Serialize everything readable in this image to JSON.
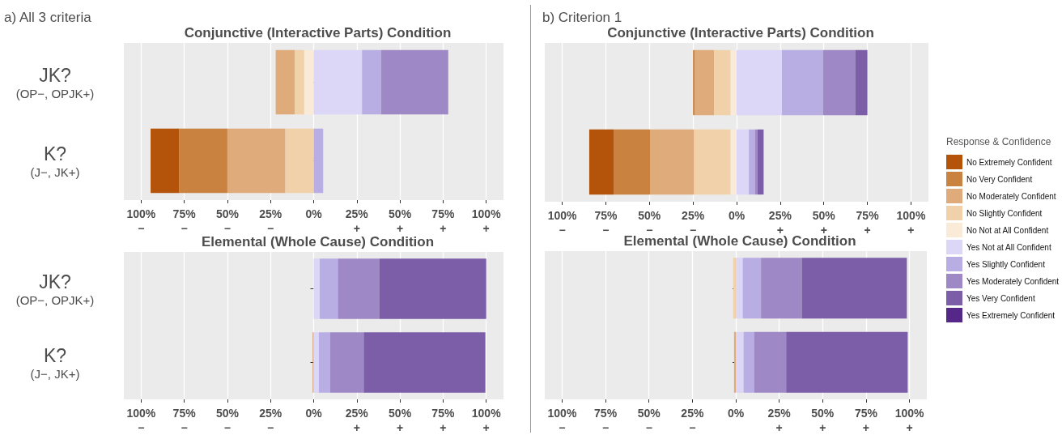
{
  "chart_data": [
    {
      "type": "bar",
      "orientation": "horizontal",
      "stacked": true,
      "subtitle": "a) All 3 criteria",
      "title": "Conjunctive (Interactive Parts) Condition",
      "categories": [
        "JK?\n(OP−, OPJK+)",
        "K?\n(J−, JK+)"
      ],
      "legend": "right",
      "legend_title": "Response & Confidence",
      "xlim": [
        -110,
        110
      ],
      "xticks": [
        {
          "value": -100,
          "label": "100%\n−"
        },
        {
          "value": -75,
          "label": "75%\n−"
        },
        {
          "value": -50,
          "label": "50%\n−"
        },
        {
          "value": -25,
          "label": "25%\n−"
        },
        {
          "value": 0,
          "label": "0%"
        },
        {
          "value": 25,
          "label": "25%\n+"
        },
        {
          "value": 50,
          "label": "50%\n+"
        },
        {
          "value": 75,
          "label": "75%\n+"
        },
        {
          "value": 100,
          "label": "100%\n+"
        }
      ],
      "grid": "x",
      "series": [
        {
          "name": "No Not at All Confident",
          "color": "#faebd8",
          "values": [
            -5.5,
            null
          ]
        },
        {
          "name": "No Slightly Confident",
          "color": "#f0d1a9",
          "values": [
            -5.5,
            -16.5
          ]
        },
        {
          "name": "No Moderately Confident",
          "color": "#dfab7a",
          "values": [
            -11,
            -33.5
          ]
        },
        {
          "name": "No Very Confident",
          "color": "#c98240",
          "values": [
            null,
            -28
          ]
        },
        {
          "name": "No Extremely Confident",
          "color": "#b3540a",
          "values": [
            null,
            -16.5
          ]
        },
        {
          "name": "Yes Not at All Confident",
          "color": "#dcd6f7",
          "values": [
            28,
            null
          ]
        },
        {
          "name": "Yes Slightly Confident",
          "color": "#b9aee3",
          "values": [
            11,
            5.5
          ]
        },
        {
          "name": "Yes Moderately Confident",
          "color": "#9e88c6",
          "values": [
            39,
            null
          ]
        },
        {
          "name": "Yes Very Confident",
          "color": "#7b5da8",
          "values": [
            null,
            null
          ]
        },
        {
          "name": "Yes Extremely Confident",
          "color": "#542788",
          "values": [
            null,
            null
          ]
        }
      ]
    },
    {
      "type": "bar",
      "orientation": "horizontal",
      "stacked": true,
      "title": "Elemental (Whole Cause) Condition",
      "categories": [
        "JK?\n(OP−, OPJK+)",
        "K?\n(J−, JK+)"
      ],
      "xlim": [
        -110,
        110
      ],
      "xticks": [
        {
          "value": -100,
          "label": "100%\n−"
        },
        {
          "value": -75,
          "label": "75%\n−"
        },
        {
          "value": -50,
          "label": "50%\n−"
        },
        {
          "value": -25,
          "label": "25%\n−"
        },
        {
          "value": 0,
          "label": "0%"
        },
        {
          "value": 25,
          "label": "25%\n+"
        },
        {
          "value": 50,
          "label": "50%\n+"
        },
        {
          "value": 75,
          "label": "75%\n+"
        },
        {
          "value": 100,
          "label": "100%\n+"
        }
      ],
      "grid": "x",
      "series": [
        {
          "color": "#c98240",
          "values": [
            null,
            -0.5
          ]
        },
        {
          "color": "#dcd6f7",
          "values": [
            3.5,
            3
          ]
        },
        {
          "color": "#b9aee3",
          "values": [
            10.5,
            6.5
          ]
        },
        {
          "color": "#9e88c6",
          "values": [
            24,
            19.5
          ]
        },
        {
          "color": "#7b5da8",
          "values": [
            62,
            70.5
          ]
        }
      ]
    },
    {
      "type": "bar",
      "orientation": "horizontal",
      "stacked": true,
      "subtitle": "b) Criterion 1",
      "title": "Conjunctive (Interactive Parts) Condition",
      "categories": [
        null,
        null
      ],
      "tick_labels": "x",
      "xlim": [
        -110,
        110
      ],
      "xticks": [
        {
          "value": -100,
          "label": "100%\n−"
        },
        {
          "value": -75,
          "label": "75%\n−"
        },
        {
          "value": -50,
          "label": "50%\n−"
        },
        {
          "value": -25,
          "label": "25%\n−"
        },
        {
          "value": 0,
          "label": "0%"
        },
        {
          "value": 25,
          "label": "25%\n+"
        },
        {
          "value": 50,
          "label": "50%\n+"
        },
        {
          "value": 75,
          "label": "75%\n+"
        },
        {
          "value": 100,
          "label": "100%\n+"
        }
      ],
      "grid": "x",
      "series": [
        {
          "color": "#faebd8",
          "values": [
            -3.5,
            -3.5
          ]
        },
        {
          "color": "#f0d1a9",
          "values": [
            -9.5,
            -21
          ]
        },
        {
          "color": "#dfab7a",
          "values": [
            -11,
            -25
          ]
        },
        {
          "color": "#c98240",
          "values": [
            -1,
            -21
          ]
        },
        {
          "color": "#b3540a",
          "values": [
            null,
            -14
          ]
        },
        {
          "color": "#dcd6f7",
          "values": [
            26,
            7
          ]
        },
        {
          "color": "#b9aee3",
          "values": [
            23.5,
            3.5
          ]
        },
        {
          "color": "#9e88c6",
          "values": [
            18.5,
            1.5
          ]
        },
        {
          "color": "#7b5da8",
          "values": [
            7,
            3.5
          ]
        }
      ]
    },
    {
      "type": "bar",
      "orientation": "horizontal",
      "stacked": true,
      "title": "Elemental (Whole Cause) Condition",
      "categories": [
        null,
        null
      ],
      "tick_labels": "x",
      "xlim": [
        -110,
        110
      ],
      "xticks": [
        {
          "value": -100,
          "label": "100%\n−"
        },
        {
          "value": -75,
          "label": "75%\n−"
        },
        {
          "value": -50,
          "label": "50%\n−"
        },
        {
          "value": -25,
          "label": "25%\n−"
        },
        {
          "value": 0,
          "label": "0%"
        },
        {
          "value": 25,
          "label": "25%\n+"
        },
        {
          "value": 50,
          "label": "50%\n+"
        },
        {
          "value": 75,
          "label": "75%\n+"
        },
        {
          "value": 100,
          "label": "100%\n+"
        }
      ],
      "grid": "x",
      "series": [
        {
          "color": "#f0d1a9",
          "values": [
            -1.5,
            null
          ]
        },
        {
          "color": "#dfab7a",
          "values": [
            null,
            -1
          ]
        },
        {
          "color": "#dcd6f7",
          "values": [
            4,
            4.5
          ]
        },
        {
          "color": "#b9aee3",
          "values": [
            10.5,
            6
          ]
        },
        {
          "color": "#9e88c6",
          "values": [
            23.5,
            18.5
          ]
        },
        {
          "color": "#7b5da8",
          "values": [
            60.5,
            70
          ]
        }
      ]
    }
  ]
}
